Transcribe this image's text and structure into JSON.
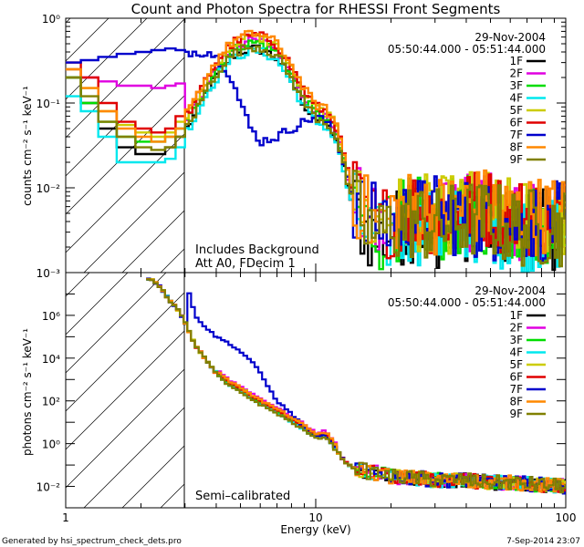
{
  "title": "Count and Photon Spectra for RHESSI Front Segments",
  "footer_left": "Generated by hsi_spectrum_check_dets.pro",
  "footer_right": "7-Sep-2014 23:07",
  "xlabel": "Energy (keV)",
  "date": "29-Nov-2004",
  "time_range": "05:50:44.000 - 05:51:44.000",
  "detectors": [
    {
      "label": "1F",
      "color": "#000000"
    },
    {
      "label": "2F",
      "color": "#e000e0"
    },
    {
      "label": "3F",
      "color": "#00dd00"
    },
    {
      "label": "4F",
      "color": "#00e8ee"
    },
    {
      "label": "5F",
      "color": "#cccc00"
    },
    {
      "label": "6F",
      "color": "#e00000"
    },
    {
      "label": "7F",
      "color": "#0000cc"
    },
    {
      "label": "8F",
      "color": "#ff8800"
    },
    {
      "label": "9F",
      "color": "#808000"
    }
  ],
  "chart_data": [
    {
      "type": "line",
      "title": "Count and Photon Spectra for RHESSI Front Segments",
      "xlabel": "Energy (keV)",
      "ylabel": "counts cm⁻² s⁻¹ keV⁻¹",
      "xscale": "log",
      "yscale": "log",
      "xlim": [
        1,
        100
      ],
      "ylim": [
        0.001,
        1
      ],
      "x_ticks": [
        "1",
        "10",
        "100"
      ],
      "y_ticks": [
        "10⁻³",
        "10⁻²",
        "10⁻¹",
        "10⁰"
      ],
      "annotations": [
        "Includes Background",
        "Att A0, FDecim 1"
      ],
      "vertical_line_x": 3,
      "diagonal_hatching_below_x": 3,
      "series": [
        {
          "name": "1F",
          "low": [
            0.2,
            0.1,
            0.05,
            0.03,
            0.025,
            0.025,
            0.03,
            0.04
          ]
        },
        {
          "name": "2F",
          "low": [
            0.25,
            0.2,
            0.18,
            0.16,
            0.16,
            0.15,
            0.16,
            0.17
          ]
        },
        {
          "name": "3F",
          "low": [
            0.2,
            0.1,
            0.06,
            0.04,
            0.035,
            0.035,
            0.04,
            0.05
          ]
        },
        {
          "name": "4F",
          "low": [
            0.12,
            0.08,
            0.04,
            0.02,
            0.02,
            0.02,
            0.022,
            0.03
          ]
        },
        {
          "name": "5F",
          "low": [
            0.25,
            0.15,
            0.08,
            0.055,
            0.045,
            0.04,
            0.045,
            0.06
          ]
        },
        {
          "name": "6F",
          "low": [
            0.3,
            0.2,
            0.1,
            0.06,
            0.05,
            0.045,
            0.05,
            0.07
          ]
        },
        {
          "name": "7F",
          "low": [
            0.3,
            0.32,
            0.35,
            0.38,
            0.4,
            0.42,
            0.44,
            0.42
          ]
        },
        {
          "name": "8F",
          "low": [
            0.25,
            0.15,
            0.08,
            0.05,
            0.04,
            0.035,
            0.04,
            0.05
          ]
        },
        {
          "name": "9F",
          "low": [
            0.2,
            0.12,
            0.06,
            0.04,
            0.03,
            0.028,
            0.03,
            0.04
          ]
        }
      ],
      "common_shape": {
        "x": [
          2.9,
          3.3,
          3.7,
          4.2,
          4.7,
          5.2,
          5.8,
          6.4,
          7.0,
          7.6,
          8.2,
          9.0,
          10.0,
          11.0,
          12.0,
          13.0,
          14.0,
          16.0,
          18.0,
          20.0,
          25.0,
          30.0,
          40.0,
          50.0,
          60.0,
          70.0,
          80.0,
          100.0
        ],
        "y": [
          0.05,
          0.09,
          0.18,
          0.32,
          0.45,
          0.52,
          0.55,
          0.5,
          0.42,
          0.3,
          0.2,
          0.12,
          0.08,
          0.07,
          0.05,
          0.02,
          0.008,
          0.004,
          0.003,
          0.004,
          0.005,
          0.004,
          0.005,
          0.005,
          0.004,
          0.004,
          0.004,
          0.004
        ]
      },
      "seven_f_shape": {
        "x": [
          3.3,
          3.8,
          4.2,
          4.6,
          5.0,
          5.5,
          6.0,
          7.0,
          8.0,
          9.0,
          10.0,
          11.0,
          12.0,
          13.0,
          14.0,
          16.0,
          20.0,
          30.0,
          50.0,
          100.0
        ],
        "y": [
          0.4,
          0.4,
          0.3,
          0.2,
          0.1,
          0.05,
          0.035,
          0.04,
          0.05,
          0.06,
          0.07,
          0.06,
          0.04,
          0.02,
          0.008,
          0.004,
          0.004,
          0.005,
          0.004,
          0.004
        ]
      }
    },
    {
      "type": "line",
      "xlabel": "Energy (keV)",
      "ylabel": "photons cm⁻² s⁻¹ keV⁻¹",
      "xscale": "log",
      "yscale": "log",
      "xlim": [
        1,
        100
      ],
      "ylim": [
        0.001,
        100000000.0
      ],
      "x_ticks": [
        "1",
        "10",
        "100"
      ],
      "y_ticks": [
        "10⁻²",
        "10⁰",
        "10²",
        "10⁴",
        "10⁶"
      ],
      "annotations": [
        "Semi–calibrated"
      ],
      "vertical_line_x": 3,
      "diagonal_hatching_below_x": 3,
      "common_shape": {
        "x": [
          2.2,
          2.4,
          2.6,
          2.8,
          3.0,
          3.3,
          3.6,
          4.0,
          4.5,
          5.0,
          5.5,
          6.0,
          7.0,
          8.0,
          9.0,
          10.0,
          11.0,
          12.0,
          13.0,
          14.0,
          16.0,
          18.0,
          20.0,
          25.0,
          30.0,
          40.0,
          50.0,
          60.0,
          80.0,
          100.0
        ],
        "y": [
          50000000.0,
          20000000.0,
          5000000.0,
          2000000.0,
          500000.0,
          40000.0,
          10000.0,
          2000.0,
          600.0,
          300.0,
          150.0,
          80.0,
          30.0,
          12.0,
          5.0,
          2.0,
          2.5,
          0.6,
          0.15,
          0.08,
          0.05,
          0.04,
          0.03,
          0.025,
          0.02,
          0.02,
          0.015,
          0.015,
          0.012,
          0.01
        ]
      },
      "seven_f_shape": {
        "x": [
          3.0,
          3.3,
          3.6,
          4.0,
          4.5,
          5.0,
          5.5,
          6.0,
          6.5,
          7.0,
          8.0,
          9.0,
          10.0
        ],
        "y": [
          50000000.0,
          1000000.0,
          300000.0,
          100000.0,
          50000.0,
          20000.0,
          8000.0,
          2000.0,
          400.0,
          100.0,
          25.0,
          6.0,
          2.0
        ]
      }
    }
  ]
}
